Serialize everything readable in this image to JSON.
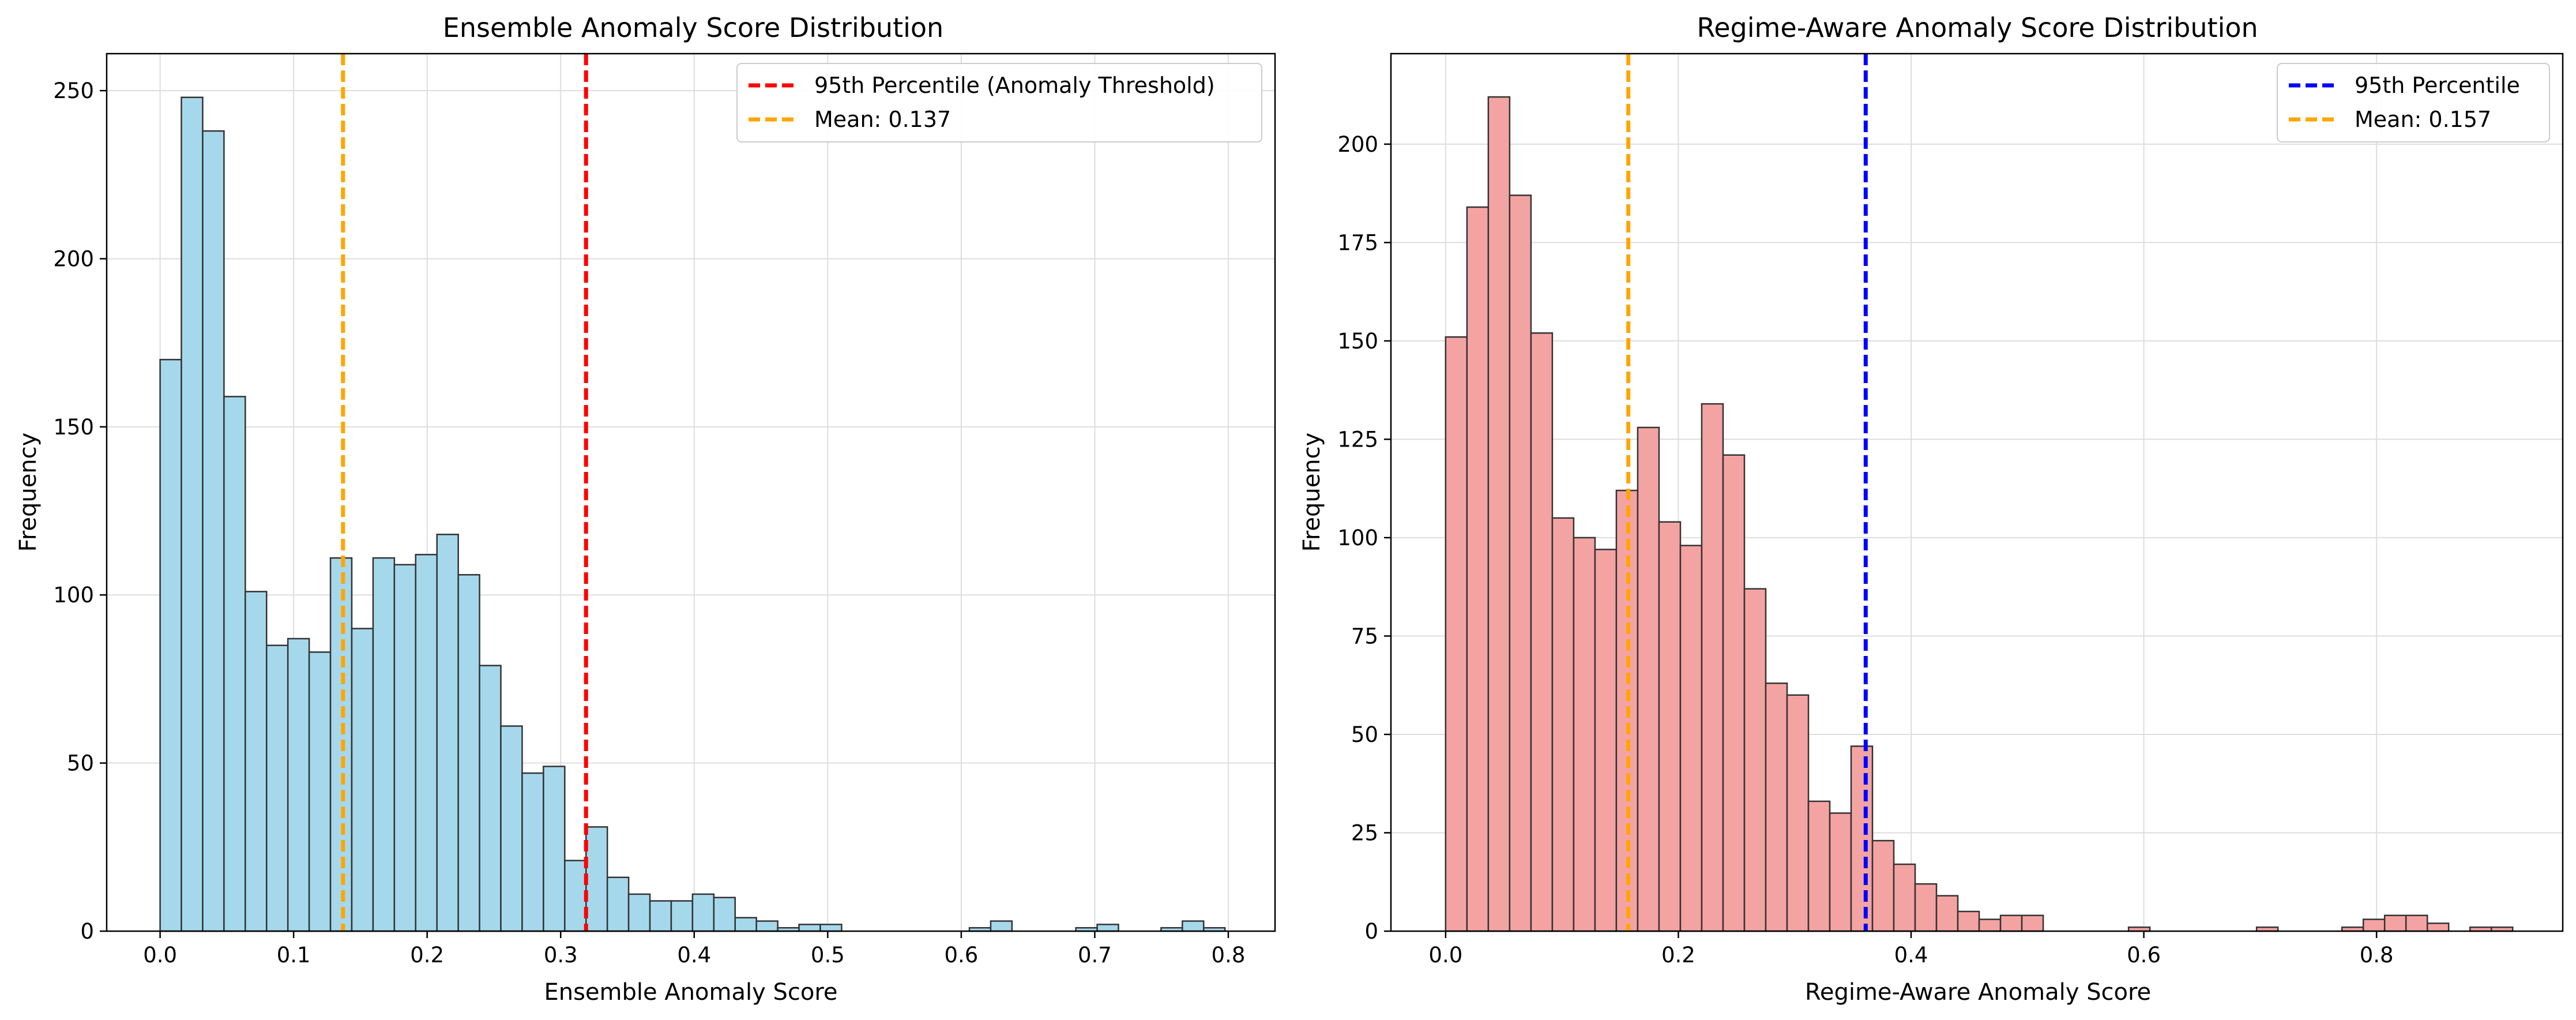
{
  "figure": {
    "background": "#ffffff",
    "grid_color": "#dddddd",
    "edge_color": "#333333"
  },
  "chart_data": [
    {
      "type": "histogram",
      "title": "Ensemble Anomaly Score Distribution",
      "xlabel": "Ensemble Anomaly Score",
      "ylabel": "Frequency",
      "xlim": [
        -0.04,
        0.835
      ],
      "ylim": [
        0,
        261
      ],
      "xticks": [
        0.0,
        0.1,
        0.2,
        0.3,
        0.4,
        0.5,
        0.6,
        0.7,
        0.8
      ],
      "xtick_labels": [
        "0.0",
        "0.1",
        "0.2",
        "0.3",
        "0.4",
        "0.5",
        "0.6",
        "0.7",
        "0.8"
      ],
      "yticks": [
        0,
        50,
        100,
        150,
        200,
        250
      ],
      "ytick_labels": [
        "0",
        "50",
        "100",
        "150",
        "200",
        "250"
      ],
      "grid": true,
      "legend_position": "top-right",
      "bar_color": "#a6d8ec",
      "bin_start": 0.0,
      "bin_width": 0.01595,
      "counts": [
        170,
        248,
        238,
        159,
        101,
        85,
        87,
        83,
        111,
        90,
        111,
        109,
        112,
        118,
        106,
        79,
        61,
        47,
        49,
        21,
        31,
        16,
        11,
        9,
        9,
        11,
        10,
        4,
        3,
        1,
        2,
        2,
        0,
        0,
        0,
        0,
        0,
        0,
        1,
        3,
        0,
        0,
        0,
        1,
        2,
        0,
        0,
        1,
        3,
        1
      ],
      "lines": [
        {
          "label": "95th Percentile (Anomaly Threshold)",
          "x": 0.319,
          "color": "#ff0000"
        },
        {
          "label": "Mean: 0.137",
          "x": 0.137,
          "color": "#ffa500"
        }
      ]
    },
    {
      "type": "histogram",
      "title": "Regime-Aware Anomaly Score Distribution",
      "xlabel": "Regime-Aware Anomaly Score",
      "ylabel": "Frequency",
      "xlim": [
        -0.047,
        0.96
      ],
      "ylim": [
        0,
        223
      ],
      "xticks": [
        0.0,
        0.2,
        0.4,
        0.6,
        0.8
      ],
      "xtick_labels": [
        "0.0",
        "0.2",
        "0.4",
        "0.6",
        "0.8"
      ],
      "yticks": [
        0,
        25,
        50,
        75,
        100,
        125,
        150,
        175,
        200
      ],
      "ytick_labels": [
        "0",
        "25",
        "50",
        "75",
        "100",
        "125",
        "150",
        "175",
        "200"
      ],
      "grid": true,
      "legend_position": "top-right",
      "bar_color": "#f4a3a3",
      "bin_start": 0.0,
      "bin_width": 0.01834,
      "counts": [
        151,
        184,
        212,
        187,
        152,
        105,
        100,
        97,
        112,
        128,
        104,
        98,
        134,
        121,
        87,
        63,
        60,
        33,
        30,
        47,
        23,
        17,
        12,
        9,
        5,
        3,
        4,
        4,
        0,
        0,
        0,
        0,
        1,
        0,
        0,
        0,
        0,
        0,
        1,
        0,
        0,
        0,
        1,
        3,
        4,
        4,
        2,
        0,
        1,
        1
      ],
      "lines": [
        {
          "label": "95th Percentile",
          "x": 0.361,
          "color": "#0000ff"
        },
        {
          "label": "Mean: 0.157",
          "x": 0.157,
          "color": "#ffa500"
        }
      ]
    }
  ]
}
